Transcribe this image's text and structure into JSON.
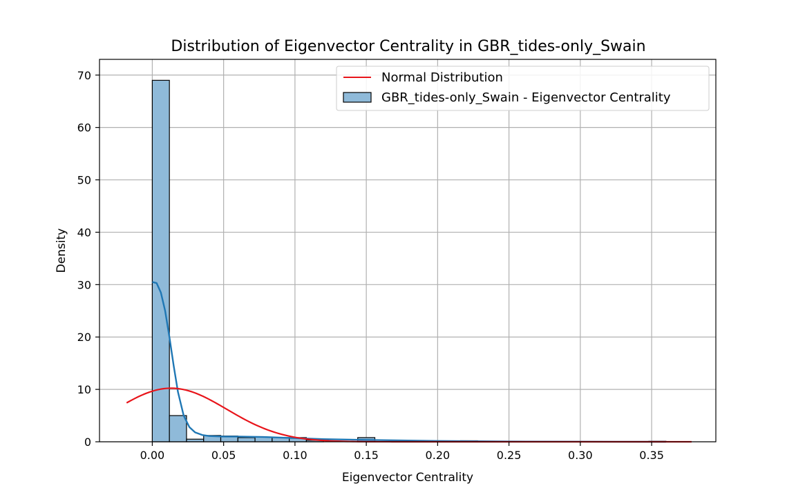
{
  "chart_data": {
    "type": "histogram",
    "title": "Distribution of Eigenvector Centrality in GBR_tides-only_Swain",
    "xlabel": "Eigenvector Centrality",
    "ylabel": "Density",
    "xlim": [
      -0.037,
      0.395
    ],
    "ylim": [
      0,
      73
    ],
    "x_ticks": [
      0.0,
      0.05,
      0.1,
      0.15,
      0.2,
      0.25,
      0.3,
      0.35
    ],
    "x_tick_labels": [
      "0.00",
      "0.05",
      "0.10",
      "0.15",
      "0.20",
      "0.25",
      "0.30",
      "0.35"
    ],
    "y_ticks": [
      0,
      10,
      20,
      30,
      40,
      50,
      60,
      70
    ],
    "y_tick_labels": [
      "0",
      "10",
      "20",
      "30",
      "40",
      "50",
      "60",
      "70"
    ],
    "grid": true,
    "legend_position": "top-right",
    "colors": {
      "hist_fill": "#8fbad9",
      "hist_edge": "#000000",
      "kde": "#1f77b4",
      "normal": "#e8141a",
      "grid": "#b0b0b0"
    },
    "histogram": {
      "name": "GBR_tides-only_Swain - Eigenvector Centrality",
      "bin_start": 0.0,
      "bin_width": 0.012,
      "density": [
        69.0,
        5.0,
        0.5,
        1.2,
        1.1,
        0.8,
        0.9,
        0.8,
        0.8,
        0.3,
        0.0,
        0.0,
        0.8,
        0.0,
        0.0,
        0.0,
        0.0,
        0.0,
        0.2,
        0.0,
        0.0,
        0.0,
        0.0,
        0.0,
        0.0,
        0.0,
        0.0,
        0.0,
        0.0,
        0.1
      ]
    },
    "kde_curve": {
      "x": [
        0.0,
        0.003,
        0.006,
        0.009,
        0.012,
        0.015,
        0.018,
        0.022,
        0.026,
        0.03,
        0.035,
        0.04,
        0.05,
        0.06,
        0.08,
        0.1,
        0.12,
        0.15,
        0.2,
        0.25,
        0.3,
        0.36
      ],
      "y": [
        30.5,
        30.3,
        28.5,
        25.0,
        20.0,
        14.5,
        9.5,
        5.0,
        2.8,
        1.8,
        1.3,
        1.1,
        1.0,
        1.0,
        0.9,
        0.7,
        0.5,
        0.35,
        0.15,
        0.05,
        0.02,
        0.0
      ]
    },
    "normal_curve": {
      "name": "Normal Distribution",
      "mean": 0.0132,
      "std": 0.039,
      "x_range": [
        -0.018,
        0.378
      ]
    }
  }
}
